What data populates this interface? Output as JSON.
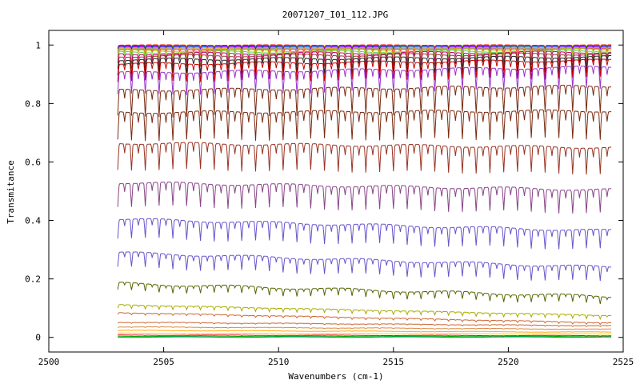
{
  "chart_data": {
    "type": "line",
    "title": "20071207_I01_112.JPG",
    "xlabel": "Wavenumbers (cm-1)",
    "ylabel": "Transmitance",
    "xlim": [
      2500,
      2525
    ],
    "ylim": [
      -0.05,
      1.05
    ],
    "x_ticks": [
      2500,
      2505,
      2510,
      2515,
      2520,
      2525
    ],
    "y_ticks": [
      0,
      0.2,
      0.4,
      0.6,
      0.8,
      1
    ],
    "y_tick_labels": [
      "0",
      "0.2",
      "0.4",
      "0.6",
      "0.8",
      "1"
    ],
    "x_range_data": [
      2503.0,
      2524.5
    ],
    "line_spacing_cm": 0.6,
    "grid": false,
    "legend": "none",
    "series": [
      {
        "start": 1.0,
        "end": 1.0,
        "depth": 0.006,
        "color": "#ff0000"
      },
      {
        "start": 0.998,
        "end": 0.998,
        "depth": 0.008,
        "color": "#00cc00"
      },
      {
        "start": 0.996,
        "end": 0.996,
        "depth": 0.01,
        "color": "#0000ff"
      },
      {
        "start": 0.994,
        "end": 0.995,
        "depth": 0.012,
        "color": "#ff00ff"
      },
      {
        "start": 0.992,
        "end": 0.993,
        "depth": 0.014,
        "color": "#00cccc"
      },
      {
        "start": 0.99,
        "end": 0.991,
        "depth": 0.016,
        "color": "#ffaa00"
      },
      {
        "start": 0.987,
        "end": 0.989,
        "depth": 0.018,
        "color": "#999999"
      },
      {
        "start": 0.984,
        "end": 0.987,
        "depth": 0.02,
        "color": "#ff4444"
      },
      {
        "start": 0.98,
        "end": 0.984,
        "depth": 0.024,
        "color": "#aacc00"
      },
      {
        "start": 0.975,
        "end": 0.98,
        "depth": 0.028,
        "color": "#66cc66"
      },
      {
        "start": 0.97,
        "end": 0.976,
        "depth": 0.032,
        "color": "#cc0066"
      },
      {
        "start": 0.962,
        "end": 0.97,
        "depth": 0.04,
        "color": "#993333"
      },
      {
        "start": 0.95,
        "end": 0.96,
        "depth": 0.05,
        "color": "#222222"
      },
      {
        "start": 0.935,
        "end": 0.948,
        "depth": 0.06,
        "color": "#cc0000"
      },
      {
        "start": 0.905,
        "end": 0.925,
        "depth": 0.075,
        "color": "#9933cc"
      },
      {
        "start": 0.845,
        "end": 0.86,
        "depth": 0.09,
        "color": "#7a2a10"
      },
      {
        "start": 0.77,
        "end": 0.775,
        "depth": 0.095,
        "color": "#7a2a10"
      },
      {
        "start": 0.665,
        "end": 0.65,
        "depth": 0.09,
        "color": "#993322"
      },
      {
        "start": 0.53,
        "end": 0.505,
        "depth": 0.08,
        "color": "#884488"
      },
      {
        "start": 0.405,
        "end": 0.365,
        "depth": 0.065,
        "color": "#6655cc"
      },
      {
        "start": 0.29,
        "end": 0.24,
        "depth": 0.05,
        "color": "#6655cc"
      },
      {
        "start": 0.185,
        "end": 0.14,
        "depth": 0.025,
        "color": "#556600"
      },
      {
        "start": 0.112,
        "end": 0.075,
        "depth": 0.012,
        "color": "#aaaa00"
      },
      {
        "start": 0.085,
        "end": 0.05,
        "depth": 0.006,
        "color": "#cc6633"
      },
      {
        "start": 0.052,
        "end": 0.04,
        "depth": 0.003,
        "color": "#cc6633"
      },
      {
        "start": 0.036,
        "end": 0.028,
        "depth": 0.002,
        "color": "#dd8844"
      },
      {
        "start": 0.024,
        "end": 0.018,
        "depth": 0.001,
        "color": "#ffaa00"
      },
      {
        "start": 0.014,
        "end": 0.012,
        "depth": 0.001,
        "color": "#ffcc00"
      },
      {
        "start": 0.008,
        "end": 0.006,
        "depth": 0.001,
        "color": "#ff0000"
      },
      {
        "start": 0.004,
        "end": 0.003,
        "depth": 0.0,
        "color": "#00aa00"
      },
      {
        "start": 0.001,
        "end": 0.001,
        "depth": 0.0,
        "color": "#008888"
      }
    ]
  }
}
